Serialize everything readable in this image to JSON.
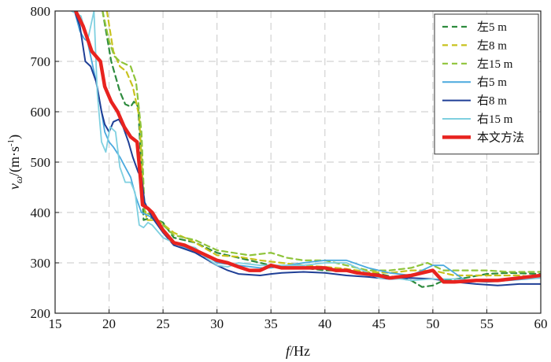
{
  "chart_data": {
    "type": "line",
    "xlabel_var": "f",
    "xlabel_unit": "/Hz",
    "ylabel_var": "v",
    "ylabel_sub": "ω",
    "ylabel_unit_pre": "/(m·s",
    "ylabel_unit_sup": "-1",
    "ylabel_unit_post": ")",
    "xlim": [
      15,
      60
    ],
    "ylim": [
      200,
      800
    ],
    "xticks": [
      15,
      20,
      25,
      30,
      35,
      40,
      45,
      50,
      55,
      60
    ],
    "yticks": [
      200,
      300,
      400,
      500,
      600,
      700,
      800
    ],
    "grid": true,
    "legend_position": "top-right",
    "series": [
      {
        "name": "左5 m",
        "color": "#2e8b3e",
        "dash": "dashed",
        "width": 2.2,
        "points": [
          [
            19.4,
            800
          ],
          [
            20.2,
            700
          ],
          [
            21.0,
            640
          ],
          [
            21.5,
            615
          ],
          [
            22.0,
            610
          ],
          [
            22.3,
            620
          ],
          [
            22.7,
            610
          ],
          [
            23.0,
            480
          ],
          [
            23.2,
            385
          ],
          [
            24.0,
            390
          ],
          [
            25.0,
            380
          ],
          [
            26.0,
            350
          ],
          [
            27.0,
            345
          ],
          [
            28.0,
            340
          ],
          [
            30.0,
            320
          ],
          [
            32.0,
            310
          ],
          [
            34.0,
            300
          ],
          [
            35.0,
            295
          ],
          [
            36.0,
            292
          ],
          [
            38.0,
            290
          ],
          [
            40.0,
            285
          ],
          [
            42.0,
            285
          ],
          [
            44.0,
            280
          ],
          [
            45.0,
            278
          ],
          [
            48.0,
            265
          ],
          [
            49.0,
            252
          ],
          [
            50.0,
            255
          ],
          [
            51.0,
            265
          ],
          [
            53.0,
            270
          ],
          [
            55.0,
            278
          ],
          [
            57.0,
            280
          ],
          [
            60.0,
            278
          ]
        ]
      },
      {
        "name": "左8 m",
        "color": "#c8c21e",
        "dash": "dashed",
        "width": 2.2,
        "points": [
          [
            19.8,
            800
          ],
          [
            20.4,
            720
          ],
          [
            21.0,
            690
          ],
          [
            21.6,
            680
          ],
          [
            22.2,
            650
          ],
          [
            22.8,
            590
          ],
          [
            23.2,
            430
          ],
          [
            23.5,
            385
          ],
          [
            24.5,
            385
          ],
          [
            26.0,
            360
          ],
          [
            28.0,
            340
          ],
          [
            30.0,
            315
          ],
          [
            32.0,
            312
          ],
          [
            34.0,
            305
          ],
          [
            36.0,
            300
          ],
          [
            38.0,
            295
          ],
          [
            40.0,
            292
          ],
          [
            42.0,
            288
          ],
          [
            44.0,
            282
          ],
          [
            46.0,
            280
          ],
          [
            48.0,
            285
          ],
          [
            50.0,
            285
          ],
          [
            52.0,
            275
          ],
          [
            54.0,
            275
          ],
          [
            56.0,
            275
          ],
          [
            58.0,
            275
          ],
          [
            60.0,
            270
          ]
        ]
      },
      {
        "name": "左15 m",
        "color": "#8fc43a",
        "dash": "dashed",
        "width": 2.2,
        "points": [
          [
            19.4,
            800
          ],
          [
            20.0,
            740
          ],
          [
            20.5,
            710
          ],
          [
            21.0,
            700
          ],
          [
            21.5,
            695
          ],
          [
            22.0,
            690
          ],
          [
            22.5,
            660
          ],
          [
            23.0,
            560
          ],
          [
            23.3,
            400
          ],
          [
            24.0,
            395
          ],
          [
            26.0,
            355
          ],
          [
            28.0,
            345
          ],
          [
            30.0,
            325
          ],
          [
            33.0,
            315
          ],
          [
            35.0,
            320
          ],
          [
            36.5,
            310
          ],
          [
            38.0,
            305
          ],
          [
            40.0,
            305
          ],
          [
            42.0,
            295
          ],
          [
            44.0,
            285
          ],
          [
            46.0,
            285
          ],
          [
            48.0,
            290
          ],
          [
            49.5,
            300
          ],
          [
            51.0,
            285
          ],
          [
            53.0,
            285
          ],
          [
            55.0,
            285
          ],
          [
            57.0,
            282
          ],
          [
            60.0,
            282
          ]
        ]
      },
      {
        "name": "右5 m",
        "color": "#4aa9de",
        "dash": "solid",
        "width": 1.8,
        "points": [
          [
            16.8,
            800
          ],
          [
            17.3,
            760
          ],
          [
            17.7,
            745
          ],
          [
            18.0,
            740
          ],
          [
            18.4,
            700
          ],
          [
            18.9,
            650
          ],
          [
            19.3,
            600
          ],
          [
            19.6,
            560
          ],
          [
            20.0,
            540
          ],
          [
            20.4,
            530
          ],
          [
            21.0,
            510
          ],
          [
            21.5,
            490
          ],
          [
            22.0,
            470
          ],
          [
            22.5,
            430
          ],
          [
            23.0,
            400
          ],
          [
            24.0,
            390
          ],
          [
            25.0,
            360
          ],
          [
            26.0,
            340
          ],
          [
            28.0,
            320
          ],
          [
            29.0,
            315
          ],
          [
            30.0,
            300
          ],
          [
            32.0,
            295
          ],
          [
            34.0,
            290
          ],
          [
            35.0,
            290
          ],
          [
            36.5,
            295
          ],
          [
            38.0,
            300
          ],
          [
            40.0,
            305
          ],
          [
            42.0,
            305
          ],
          [
            44.0,
            290
          ],
          [
            46.0,
            280
          ],
          [
            48.0,
            275
          ],
          [
            49.0,
            285
          ],
          [
            50.0,
            295
          ],
          [
            51.0,
            295
          ],
          [
            52.0,
            280
          ],
          [
            53.0,
            265
          ],
          [
            55.0,
            262
          ],
          [
            57.0,
            265
          ],
          [
            60.0,
            270
          ]
        ]
      },
      {
        "name": "右8 m",
        "color": "#1f3f96",
        "dash": "solid",
        "width": 2.0,
        "points": [
          [
            16.8,
            800
          ],
          [
            17.3,
            770
          ],
          [
            17.8,
            700
          ],
          [
            18.3,
            690
          ],
          [
            18.8,
            660
          ],
          [
            19.3,
            600
          ],
          [
            19.6,
            575
          ],
          [
            20.0,
            560
          ],
          [
            20.4,
            580
          ],
          [
            20.9,
            585
          ],
          [
            21.3,
            570
          ],
          [
            21.8,
            540
          ],
          [
            22.2,
            510
          ],
          [
            22.7,
            480
          ],
          [
            23.0,
            470
          ],
          [
            23.3,
            420
          ],
          [
            24.0,
            390
          ],
          [
            25.0,
            360
          ],
          [
            26.0,
            335
          ],
          [
            28.0,
            320
          ],
          [
            30.0,
            295
          ],
          [
            31.0,
            285
          ],
          [
            32.0,
            278
          ],
          [
            34.0,
            275
          ],
          [
            35.0,
            278
          ],
          [
            36.0,
            280
          ],
          [
            38.0,
            282
          ],
          [
            40.0,
            280
          ],
          [
            42.0,
            275
          ],
          [
            44.0,
            272
          ],
          [
            46.0,
            268
          ],
          [
            48.0,
            270
          ],
          [
            50.0,
            268
          ],
          [
            52.0,
            262
          ],
          [
            54.0,
            258
          ],
          [
            56.0,
            255
          ],
          [
            58.0,
            258
          ],
          [
            60.0,
            258
          ]
        ]
      },
      {
        "name": "右15 m",
        "color": "#7fd0e0",
        "dash": "solid",
        "width": 1.8,
        "points": [
          [
            16.5,
            800
          ],
          [
            17.4,
            790
          ],
          [
            18.0,
            740
          ],
          [
            18.6,
            800
          ],
          [
            18.9,
            640
          ],
          [
            19.3,
            540
          ],
          [
            19.7,
            520
          ],
          [
            20.1,
            570
          ],
          [
            20.6,
            560
          ],
          [
            21.0,
            490
          ],
          [
            21.5,
            460
          ],
          [
            22.0,
            460
          ],
          [
            22.4,
            440
          ],
          [
            22.8,
            375
          ],
          [
            23.2,
            370
          ],
          [
            23.6,
            380
          ],
          [
            24.0,
            375
          ],
          [
            25.0,
            350
          ],
          [
            26.0,
            340
          ],
          [
            28.0,
            330
          ],
          [
            29.0,
            310
          ],
          [
            30.0,
            295
          ],
          [
            31.0,
            292
          ],
          [
            32.0,
            300
          ],
          [
            34.0,
            295
          ],
          [
            36.0,
            295
          ],
          [
            38.0,
            295
          ],
          [
            40.0,
            300
          ],
          [
            42.0,
            300
          ],
          [
            43.0,
            290
          ],
          [
            45.0,
            270
          ],
          [
            47.0,
            268
          ],
          [
            48.0,
            265
          ],
          [
            50.0,
            268
          ],
          [
            52.0,
            268
          ],
          [
            54.0,
            265
          ],
          [
            56.0,
            265
          ],
          [
            58.0,
            268
          ],
          [
            60.0,
            270
          ]
        ]
      },
      {
        "name": "本文方法",
        "color": "#e8231f",
        "dash": "solid",
        "width": 4.5,
        "points": [
          [
            16.9,
            800
          ],
          [
            17.6,
            770
          ],
          [
            18.4,
            720
          ],
          [
            19.2,
            700
          ],
          [
            19.6,
            650
          ],
          [
            20.2,
            620
          ],
          [
            20.8,
            600
          ],
          [
            21.4,
            570
          ],
          [
            22.0,
            550
          ],
          [
            22.6,
            540
          ],
          [
            22.9,
            470
          ],
          [
            23.1,
            415
          ],
          [
            23.6,
            408
          ],
          [
            24.0,
            400
          ],
          [
            25.0,
            365
          ],
          [
            26.0,
            340
          ],
          [
            27.0,
            335
          ],
          [
            28.0,
            325
          ],
          [
            29.0,
            315
          ],
          [
            30.0,
            305
          ],
          [
            31.0,
            300
          ],
          [
            32.0,
            292
          ],
          [
            33.0,
            285
          ],
          [
            34.0,
            285
          ],
          [
            35.0,
            295
          ],
          [
            36.0,
            290
          ],
          [
            38.0,
            290
          ],
          [
            40.0,
            290
          ],
          [
            41.0,
            285
          ],
          [
            42.0,
            285
          ],
          [
            43.0,
            280
          ],
          [
            45.0,
            275
          ],
          [
            46.0,
            270
          ],
          [
            48.0,
            275
          ],
          [
            50.0,
            285
          ],
          [
            51.0,
            262
          ],
          [
            52.0,
            262
          ],
          [
            54.0,
            265
          ],
          [
            56.0,
            265
          ],
          [
            58.0,
            270
          ],
          [
            60.0,
            275
          ]
        ]
      }
    ]
  }
}
